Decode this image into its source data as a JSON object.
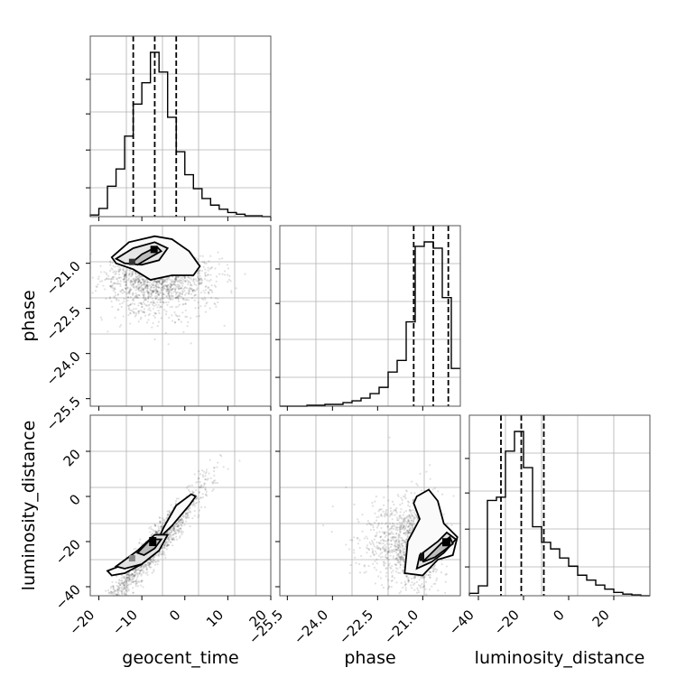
{
  "chart_data": {
    "type": "corner",
    "parameters": [
      "geocent_time",
      "phase",
      "luminosity_distance"
    ],
    "grid": true,
    "panels": [
      {
        "id": "hist-geocent_time",
        "type": "histogram",
        "x": "geocent_time",
        "xlim": [
          -22,
          20
        ],
        "bin_edges": [
          -22,
          -20,
          -18,
          -16,
          -14,
          -12,
          -10,
          -8,
          -6,
          -4,
          -2,
          0,
          2,
          4,
          6,
          8,
          10,
          12,
          14,
          16,
          18,
          20
        ],
        "counts": [
          2,
          10,
          37,
          58,
          98,
          137,
          163,
          200,
          176,
          121,
          79,
          51,
          34,
          22,
          14,
          9,
          5,
          3,
          1,
          1,
          0
        ],
        "quantiles": [
          -12,
          -7,
          -2
        ]
      },
      {
        "id": "hist-phase",
        "type": "histogram",
        "x": "phase",
        "xlim": [
          -25.75,
          -19.75
        ],
        "bin_edges": [
          -25.75,
          -25.45,
          -25.15,
          -24.85,
          -24.55,
          -24.25,
          -23.95,
          -23.65,
          -23.35,
          -23.05,
          -22.75,
          -22.45,
          -22.15,
          -21.85,
          -21.55,
          -21.25,
          -20.95,
          -20.65,
          -20.35,
          -20.05,
          -19.75
        ],
        "counts": [
          0,
          0,
          0,
          1,
          1,
          2,
          2,
          4,
          6,
          9,
          14,
          21,
          38,
          51,
          94,
          178,
          183,
          176,
          121,
          42
        ],
        "quantiles": [
          -21.3,
          -20.65,
          -20.15
        ]
      },
      {
        "id": "hist-luminosity_distance",
        "type": "histogram",
        "x": "luminosity_distance",
        "xlim": [
          -44,
          36
        ],
        "bin_edges": [
          -44,
          -40,
          -36,
          -32,
          -28,
          -24,
          -20,
          -16,
          -12,
          -8,
          -4,
          0,
          4,
          8,
          12,
          16,
          20,
          24,
          28,
          32,
          36
        ],
        "counts": [
          3,
          12,
          116,
          120,
          176,
          200,
          156,
          84,
          65,
          57,
          46,
          36,
          25,
          19,
          13,
          8,
          4,
          2,
          1,
          0
        ],
        "quantiles": [
          -30,
          -21,
          -11
        ]
      },
      {
        "id": "2d-geocent_time-phase",
        "type": "2d",
        "x": "geocent_time",
        "y": "phase",
        "xlim": [
          -22,
          20
        ],
        "ylim": [
          -25.75,
          -19.75
        ],
        "ytick_labels": [
          "-21.0",
          "-22.5",
          "-24.0",
          "-25.5"
        ],
        "ytick_values": [
          -21.0,
          -22.5,
          -24.0,
          -25.5
        ],
        "samples_mean": [
          -6,
          -21.2
        ],
        "contour_levels": 3
      },
      {
        "id": "2d-geocent_time-luminosity_distance",
        "type": "2d",
        "x": "geocent_time",
        "y": "luminosity_distance",
        "xlim": [
          -22,
          20
        ],
        "ylim": [
          -44,
          36
        ],
        "xtick_labels": [
          "-20",
          "-10",
          "0",
          "10",
          "20"
        ],
        "xtick_values": [
          -20,
          -10,
          0,
          10,
          20
        ],
        "ytick_labels": [
          "-40",
          "-20",
          "0",
          "20"
        ],
        "ytick_values": [
          -40,
          -20,
          0,
          20
        ],
        "contour_levels": 3
      },
      {
        "id": "2d-phase-luminosity_distance",
        "type": "2d",
        "x": "phase",
        "y": "luminosity_distance",
        "xlim": [
          -25.75,
          -19.75
        ],
        "ylim": [
          -44,
          36
        ],
        "xtick_labels": [
          "-25.5",
          "-24.0",
          "-22.5",
          "-21.0"
        ],
        "xtick_values": [
          -25.5,
          -24.0,
          -22.5,
          -21.0
        ],
        "contour_levels": 3
      }
    ],
    "hist_lum_xtick_labels": [
      "-40",
      "-20",
      "0",
      "20"
    ],
    "hist_lum_xtick_values": [
      -40,
      -20,
      0,
      20
    ],
    "xlabels": [
      "geocent_time",
      "phase",
      "luminosity_distance"
    ],
    "ylabels": [
      "phase",
      "luminosity_distance"
    ]
  }
}
